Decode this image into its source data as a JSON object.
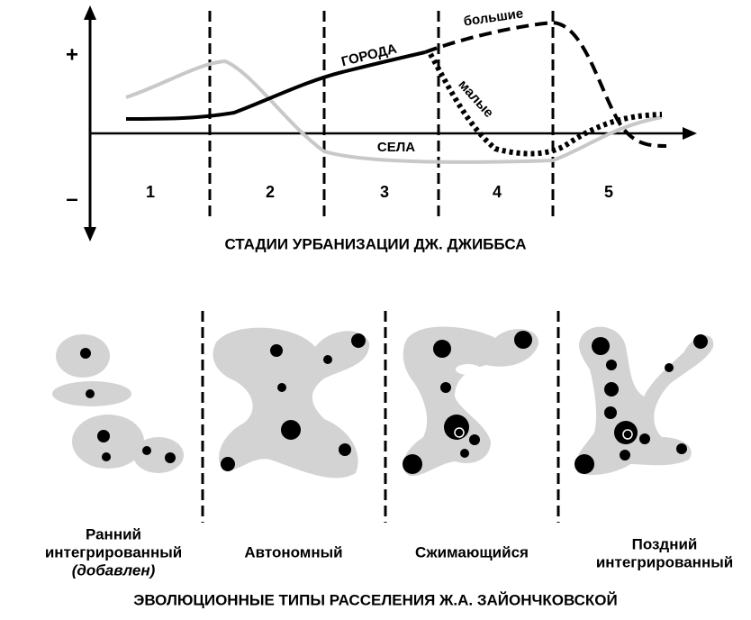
{
  "top": {
    "axis": {
      "plus": "+",
      "minus": "–"
    },
    "stages": [
      "1",
      "2",
      "3",
      "4",
      "5"
    ],
    "curve_labels": {
      "cities": "ГОРОДА",
      "large": "большие",
      "small": "малые",
      "villages": "СЕЛА"
    },
    "title": "СТАДИИ УРБАНИЗАЦИИ ДЖ. ДЖИББСА"
  },
  "bottom": {
    "types": [
      {
        "lines": [
          "Ранний",
          "интегрированный",
          "(добавлен)"
        ]
      },
      {
        "lines": [
          "Автономный"
        ]
      },
      {
        "lines": [
          "Сжимающийся"
        ]
      },
      {
        "lines": [
          "Поздний",
          "интегрированный"
        ]
      }
    ],
    "title": "ЭВОЛЮЦИОННЫЕ ТИПЫ РАССЕЛЕНИЯ Ж.А. ЗАЙОНЧКОВСКОЙ"
  }
}
